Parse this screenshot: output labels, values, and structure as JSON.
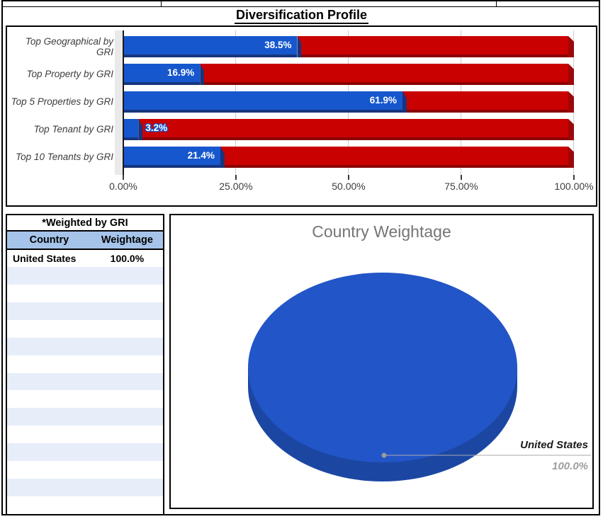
{
  "page": {
    "title": "Diversification Profile"
  },
  "chart_data": [
    {
      "type": "bar",
      "orientation": "horizontal",
      "stacked": true,
      "categories": [
        "Top Geographical by GRI",
        "Top Property by GRI",
        "Top 5 Properties by GRI",
        "Top Tenant by GRI",
        "Top 10 Tenants by GRI"
      ],
      "series": [
        {
          "color": "#1657CE",
          "values": [
            38.5,
            16.9,
            61.9,
            3.2,
            21.4
          ]
        },
        {
          "color": "#C90101",
          "values": [
            61.5,
            83.1,
            38.1,
            96.8,
            78.6
          ]
        }
      ],
      "value_labels": [
        "38.5%",
        "16.9%",
        "61.9%",
        "3.2%",
        "21.4%"
      ],
      "x_ticks": [
        "0.00%",
        "25.00%",
        "50.00%",
        "75.00%",
        "100.00%"
      ],
      "xlim": [
        0,
        100
      ],
      "grid": true,
      "legend": "none"
    },
    {
      "type": "pie",
      "is3d": true,
      "title": "Country Weightage",
      "title_color": "#757575",
      "labels": [
        "United States"
      ],
      "values": [
        100.0
      ],
      "value_labels": [
        "100.0%"
      ],
      "colors": [
        "#2255C7"
      ]
    }
  ],
  "table": {
    "title": "*Weighted by GRI",
    "columns": [
      "Country",
      "Weightage"
    ],
    "rows": [
      [
        "United States",
        "100.0%"
      ]
    ],
    "empty_row_count": 14,
    "header_bg": "#A6C4EA",
    "stripe_color": "#E7EEF9"
  }
}
